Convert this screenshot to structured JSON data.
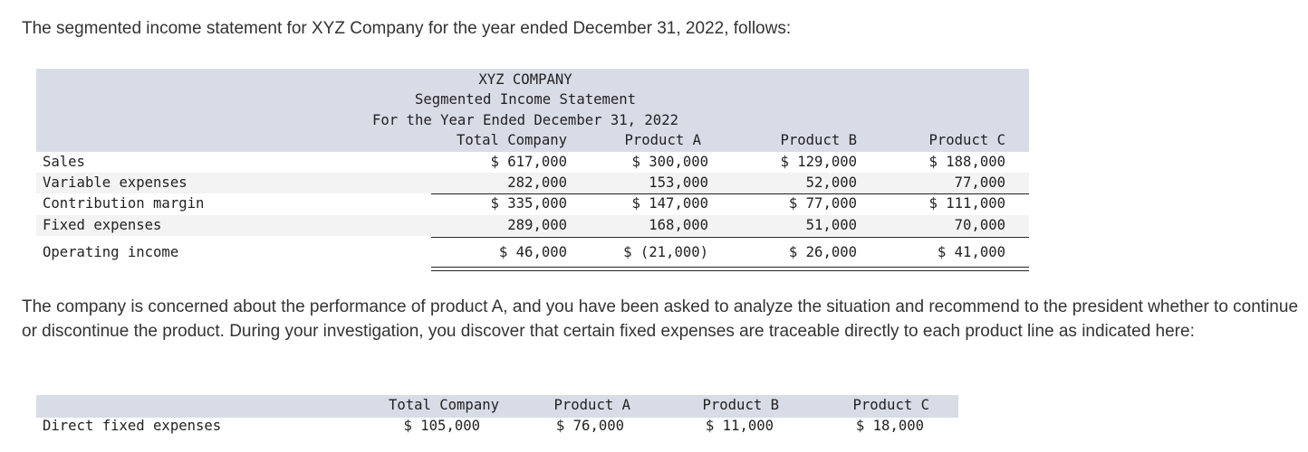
{
  "intro": "The segmented income statement for XYZ Company for the year ended December 31, 2022, follows:",
  "statement": {
    "company": "XYZ COMPANY",
    "title": "Segmented Income Statement",
    "period": "For the Year Ended December 31, 2022",
    "columns": [
      "Total Company",
      "Product A",
      "Product B",
      "Product C"
    ],
    "rows": [
      {
        "label": "Sales",
        "values": [
          "$ 617,000",
          "$ 300,000",
          "$ 129,000",
          "$ 188,000"
        ]
      },
      {
        "label": "Variable expenses",
        "values": [
          "282,000",
          "153,000",
          "52,000",
          "77,000"
        ]
      },
      {
        "label": "Contribution margin",
        "values": [
          "$ 335,000",
          "$ 147,000",
          "$ 77,000",
          "$ 111,000"
        ]
      },
      {
        "label": "Fixed expenses",
        "values": [
          "289,000",
          "168,000",
          "51,000",
          "70,000"
        ]
      },
      {
        "label": "Operating income",
        "values": [
          "$ 46,000",
          "$ (21,000)",
          "$ 26,000",
          "$ 41,000"
        ]
      }
    ]
  },
  "paragraph": "The company is concerned about the performance of product A, and you have been asked to analyze the situation and recommend to the president whether to continue or discontinue the product. During your investigation, you discover that certain fixed expenses are traceable directly to each product line as indicated here:",
  "direct": {
    "columns": [
      "Total Company",
      "Product A",
      "Product B",
      "Product C"
    ],
    "label": "Direct fixed expenses",
    "values": [
      "$ 105,000",
      "$ 76,000",
      "$ 11,000",
      "$ 18,000"
    ]
  }
}
